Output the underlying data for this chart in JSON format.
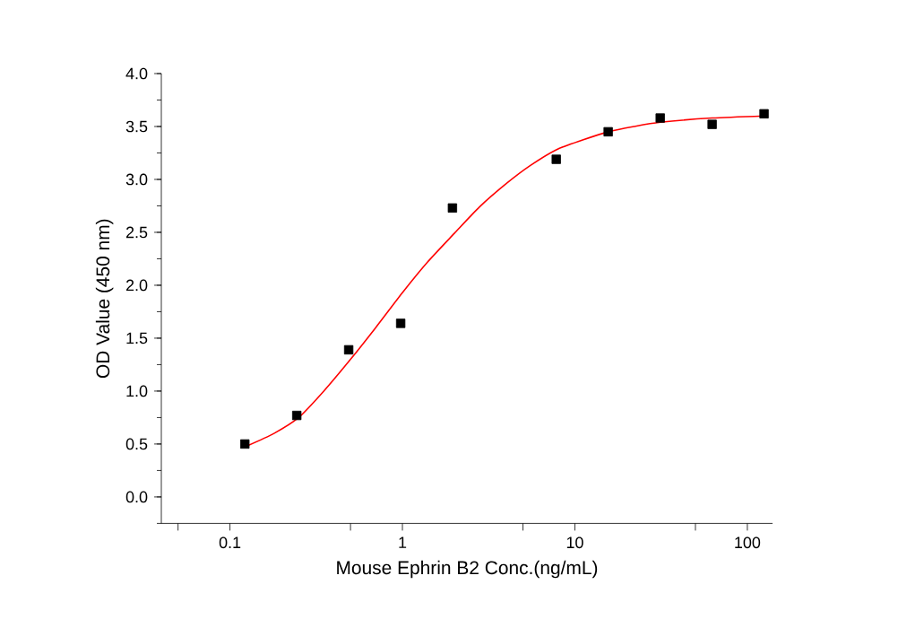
{
  "chart_data": {
    "type": "scatter",
    "xlabel": "Mouse Ephrin B2 Conc.(ng/mL)",
    "ylabel": "OD Value (450 nm)",
    "log": "x",
    "grid": false,
    "xlim": [
      0.04,
      140
    ],
    "ylim": [
      -0.25,
      4.0
    ],
    "xticks": [
      {
        "value": 0.05,
        "label": null
      },
      0.1,
      {
        "value": 0.5,
        "label": null
      },
      1,
      {
        "value": 5,
        "label": null
      },
      10,
      {
        "value": 50,
        "label": null
      },
      100
    ],
    "yticks": [
      {
        "value": 0,
        "label": "0.0"
      },
      0.5,
      {
        "value": 1,
        "label": "1.0"
      },
      1.5,
      {
        "value": 2,
        "label": "2.0"
      },
      2.5,
      {
        "value": 3,
        "label": "3.0"
      },
      3.5,
      {
        "value": 4,
        "label": "4.0"
      }
    ],
    "series": [
      {
        "type": "line",
        "color": "#ff0000",
        "marker": "none",
        "line_style": "solid",
        "x": [
          0.125,
          0.18,
          0.25,
          0.35,
          0.5,
          0.7,
          1,
          1.4,
          2,
          2.8,
          4,
          5.5,
          7.8,
          11,
          15.6,
          22,
          31.25,
          62.5,
          125
        ],
        "values": [
          0.48,
          0.6,
          0.75,
          1.0,
          1.3,
          1.6,
          1.93,
          2.22,
          2.49,
          2.74,
          2.96,
          3.13,
          3.28,
          3.37,
          3.45,
          3.5,
          3.54,
          3.58,
          3.6
        ]
      },
      {
        "color": "#000000",
        "marker": "square",
        "x": [
          0.122,
          0.244,
          0.488,
          0.977,
          1.95,
          7.8,
          15.6,
          31.25,
          62.5,
          125
        ],
        "values": [
          0.5,
          0.77,
          1.39,
          1.64,
          2.73,
          3.19,
          3.45,
          3.58,
          3.52,
          3.62
        ]
      }
    ]
  }
}
